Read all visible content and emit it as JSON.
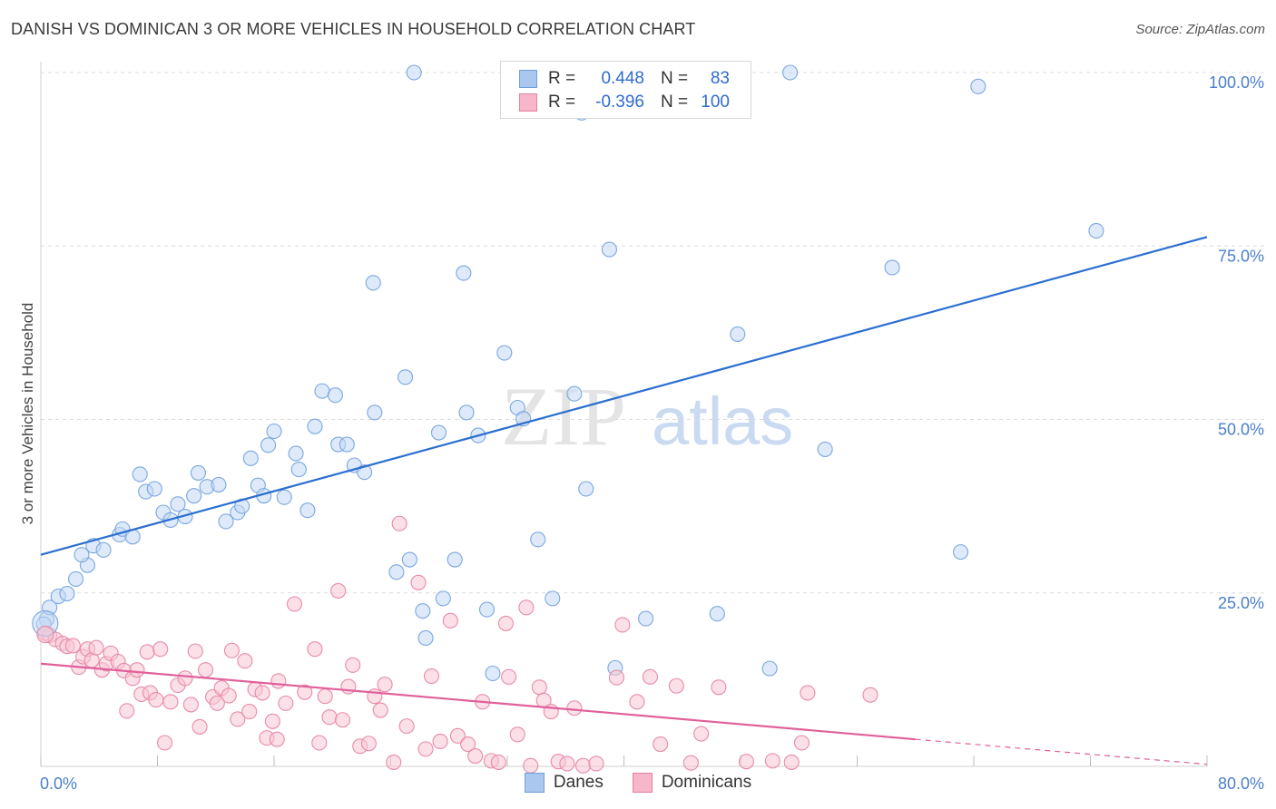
{
  "title": "DANISH VS DOMINICAN 3 OR MORE VEHICLES IN HOUSEHOLD CORRELATION CHART",
  "source": "Source: ZipAtlas.com",
  "watermark": {
    "zip": "ZIP",
    "atlas": "atlas"
  },
  "legend_stats": [
    {
      "r_label": "R =",
      "r_value": "0.448",
      "n_label": "N =",
      "n_value": "83",
      "color": "#a9c7ef",
      "edge": "#6f9fd8"
    },
    {
      "r_label": "R =",
      "r_value": "-0.396",
      "n_label": "N =",
      "n_value": "100",
      "color": "#f7b6c9",
      "edge": "#e67fa0"
    }
  ],
  "bottom_legend": [
    {
      "label": "Danes",
      "color": "#a9c7ef",
      "edge": "#6f9fd8"
    },
    {
      "label": "Dominicans",
      "color": "#f7b6c9",
      "edge": "#e67fa0"
    }
  ],
  "chart_data": {
    "type": "scatter",
    "ylabel": "3 or more Vehicles in Household",
    "xlim": [
      0,
      80
    ],
    "ylim": [
      0,
      100
    ],
    "x_tick_labels": [
      {
        "value": 0,
        "label": "0.0%"
      },
      {
        "value": 80,
        "label": "80.0%"
      }
    ],
    "y_tick_labels": [
      {
        "value": 25,
        "label": "25.0%"
      },
      {
        "value": 50,
        "label": "50.0%"
      },
      {
        "value": 75,
        "label": "75.0%"
      },
      {
        "value": 100,
        "label": "100.0%"
      }
    ],
    "grid": true,
    "series": [
      {
        "name": "Danes",
        "color": "#7aa7e0",
        "fill": "#c3d8f4",
        "trend": {
          "x": [
            0,
            80
          ],
          "y": [
            30.5,
            76.3
          ],
          "color": "#2a6fd0"
        },
        "points": [
          [
            0.4,
            21.2
          ],
          [
            0.6,
            22.9
          ],
          [
            1.2,
            24.5
          ],
          [
            1.8,
            24.9
          ],
          [
            2.4,
            27
          ],
          [
            3.2,
            29
          ],
          [
            2.8,
            30.5
          ],
          [
            3.6,
            31.8
          ],
          [
            4.3,
            31.2
          ],
          [
            5.4,
            33.4
          ],
          [
            5.6,
            34.2
          ],
          [
            6.3,
            33.1
          ],
          [
            6.8,
            42.1
          ],
          [
            7.2,
            39.6
          ],
          [
            7.8,
            40
          ],
          [
            8.4,
            36.6
          ],
          [
            8.9,
            35.5
          ],
          [
            9.4,
            37.8
          ],
          [
            9.9,
            36
          ],
          [
            10.5,
            39
          ],
          [
            10.8,
            42.3
          ],
          [
            11.4,
            40.3
          ],
          [
            12.2,
            40.6
          ],
          [
            12.7,
            35.3
          ],
          [
            13.5,
            36.6
          ],
          [
            13.8,
            37.5
          ],
          [
            14.4,
            44.4
          ],
          [
            14.9,
            40.5
          ],
          [
            15.3,
            39
          ],
          [
            15.6,
            46.3
          ],
          [
            16,
            48.3
          ],
          [
            16.7,
            38.8
          ],
          [
            17.5,
            45.1
          ],
          [
            17.7,
            42.8
          ],
          [
            18.3,
            36.9
          ],
          [
            18.8,
            49
          ],
          [
            19.3,
            54.1
          ],
          [
            20.2,
            53.5
          ],
          [
            20.4,
            46.4
          ],
          [
            21,
            46.4
          ],
          [
            21.5,
            43.4
          ],
          [
            22.2,
            42.4
          ],
          [
            22.8,
            69.7
          ],
          [
            22.9,
            51
          ],
          [
            24.4,
            28
          ],
          [
            25,
            56.1
          ],
          [
            25.3,
            29.8
          ],
          [
            25.6,
            100
          ],
          [
            26.2,
            22.4
          ],
          [
            26.4,
            18.5
          ],
          [
            27.3,
            48.1
          ],
          [
            27.6,
            24.2
          ],
          [
            28.4,
            29.8
          ],
          [
            29,
            71.1
          ],
          [
            29.2,
            51
          ],
          [
            30,
            47.7
          ],
          [
            30.6,
            22.6
          ],
          [
            31,
            13.4
          ],
          [
            31.8,
            59.6
          ],
          [
            32.7,
            51.7
          ],
          [
            33.1,
            50.1
          ],
          [
            34.1,
            32.7
          ],
          [
            35.1,
            24.2
          ],
          [
            36.6,
            53.7
          ],
          [
            37.1,
            94.2
          ],
          [
            37.4,
            40
          ],
          [
            39,
            74.5
          ],
          [
            39.4,
            14.2
          ],
          [
            41.5,
            21.3
          ],
          [
            43.4,
            100
          ],
          [
            44.5,
            100
          ],
          [
            46.4,
            22
          ],
          [
            47.8,
            62.3
          ],
          [
            50,
            14.1
          ],
          [
            51.4,
            100
          ],
          [
            53.8,
            45.7
          ],
          [
            58.4,
            71.9
          ],
          [
            63.1,
            30.9
          ],
          [
            64.3,
            98
          ],
          [
            72.4,
            77.2
          ],
          [
            0.2,
            20.5
          ]
        ]
      },
      {
        "name": "Dominicans",
        "color": "#e98aa9",
        "fill": "#f8c6d5",
        "trend": {
          "x": [
            0,
            60
          ],
          "y": [
            14.8,
            3.9
          ],
          "color": "#e0609a"
        },
        "trend_dashed": {
          "x": [
            60,
            80
          ],
          "y": [
            3.9,
            0.3
          ]
        },
        "points": [
          [
            0.3,
            19.2
          ],
          [
            0.6,
            18.9
          ],
          [
            1,
            18.3
          ],
          [
            1.5,
            17.7
          ],
          [
            1.8,
            17.3
          ],
          [
            2.2,
            17.4
          ],
          [
            2.6,
            14.3
          ],
          [
            2.9,
            15.8
          ],
          [
            3.2,
            16.9
          ],
          [
            3.5,
            15.3
          ],
          [
            3.8,
            17.1
          ],
          [
            4.2,
            13.9
          ],
          [
            4.5,
            14.8
          ],
          [
            4.8,
            16.3
          ],
          [
            5.3,
            15.1
          ],
          [
            5.7,
            13.8
          ],
          [
            5.9,
            8
          ],
          [
            6.3,
            12.7
          ],
          [
            6.6,
            13.9
          ],
          [
            6.9,
            10.4
          ],
          [
            7.3,
            16.5
          ],
          [
            7.5,
            10.6
          ],
          [
            7.9,
            9.6
          ],
          [
            8.2,
            16.9
          ],
          [
            8.5,
            3.4
          ],
          [
            8.9,
            9.3
          ],
          [
            9.4,
            11.7
          ],
          [
            9.9,
            12.7
          ],
          [
            10.3,
            8.9
          ],
          [
            10.6,
            16.6
          ],
          [
            10.9,
            5.7
          ],
          [
            11.3,
            13.9
          ],
          [
            11.8,
            10
          ],
          [
            12.1,
            9.1
          ],
          [
            12.4,
            11.3
          ],
          [
            12.9,
            10.2
          ],
          [
            13.1,
            16.7
          ],
          [
            13.5,
            6.8
          ],
          [
            14,
            15.2
          ],
          [
            14.3,
            7.9
          ],
          [
            14.7,
            11.1
          ],
          [
            15.2,
            10.6
          ],
          [
            15.5,
            4.1
          ],
          [
            15.9,
            6.5
          ],
          [
            16.3,
            12.3
          ],
          [
            16.8,
            9.1
          ],
          [
            16.2,
            3.9
          ],
          [
            17.4,
            23.4
          ],
          [
            18.1,
            10.7
          ],
          [
            18.8,
            16.9
          ],
          [
            19.1,
            3.4
          ],
          [
            19.5,
            10.1
          ],
          [
            19.8,
            7.1
          ],
          [
            20.4,
            25.3
          ],
          [
            20.7,
            6.7
          ],
          [
            21.1,
            11.5
          ],
          [
            21.4,
            14.6
          ],
          [
            21.9,
            2.9
          ],
          [
            22.5,
            3.3
          ],
          [
            22.9,
            10.1
          ],
          [
            23.3,
            8.1
          ],
          [
            23.6,
            11.8
          ],
          [
            24.2,
            0.6
          ],
          [
            24.6,
            35
          ],
          [
            25.1,
            5.8
          ],
          [
            25.9,
            26.5
          ],
          [
            26.4,
            2.5
          ],
          [
            26.8,
            13
          ],
          [
            27.4,
            3.6
          ],
          [
            28.1,
            21
          ],
          [
            28.6,
            4.4
          ],
          [
            29.3,
            3.2
          ],
          [
            29.8,
            1.5
          ],
          [
            30.3,
            9.3
          ],
          [
            30.9,
            0.8
          ],
          [
            31.4,
            0.6
          ],
          [
            31.9,
            20.6
          ],
          [
            32.1,
            12.9
          ],
          [
            32.7,
            4.6
          ],
          [
            33.3,
            22.9
          ],
          [
            33.6,
            0.1
          ],
          [
            34.2,
            11.4
          ],
          [
            34.5,
            9.5
          ],
          [
            35,
            7.9
          ],
          [
            35.5,
            0.7
          ],
          [
            36.1,
            0.4
          ],
          [
            36.6,
            8.4
          ],
          [
            37.2,
            0.1
          ],
          [
            38.1,
            0.4
          ],
          [
            39.5,
            12.8
          ],
          [
            39.9,
            20.4
          ],
          [
            40.9,
            9.3
          ],
          [
            41.8,
            12.9
          ],
          [
            42.5,
            3.2
          ],
          [
            43.6,
            11.6
          ],
          [
            44.6,
            0.5
          ],
          [
            45.3,
            4.7
          ],
          [
            46.5,
            11.4
          ],
          [
            48.4,
            0.7
          ],
          [
            50.2,
            0.8
          ],
          [
            51.5,
            0.6
          ],
          [
            52.2,
            3.4
          ],
          [
            52.6,
            10.6
          ],
          [
            56.9,
            10.3
          ]
        ]
      }
    ]
  }
}
